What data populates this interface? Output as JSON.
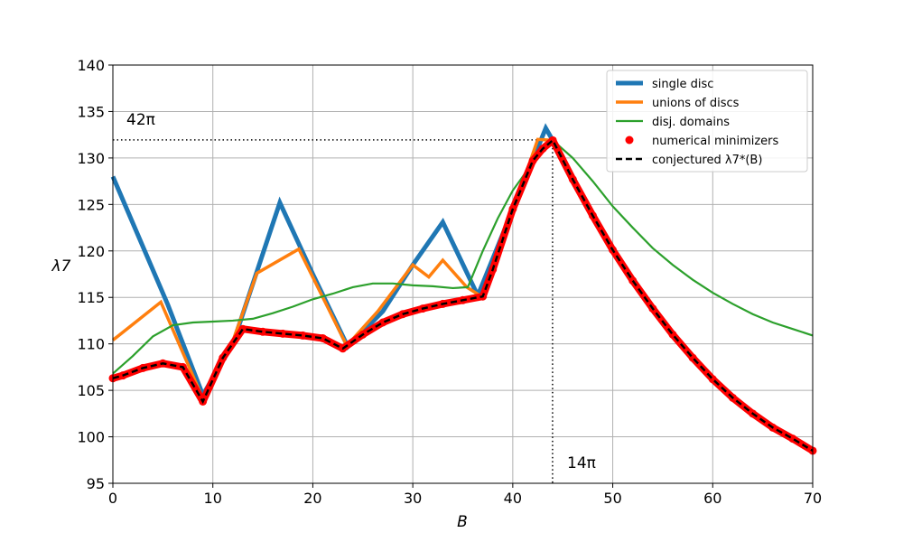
{
  "chart_data": {
    "type": "line",
    "xlabel": "B",
    "ylabel": "λ7",
    "xlim": [
      0,
      70
    ],
    "ylim": [
      95,
      140
    ],
    "xticks": [
      0,
      10,
      20,
      30,
      40,
      50,
      60,
      70
    ],
    "yticks": [
      95,
      100,
      105,
      110,
      115,
      120,
      125,
      130,
      135,
      140
    ],
    "grid": true,
    "legend_position": "top-right",
    "annotations": {
      "hline": {
        "label": "42π",
        "y": 131.95,
        "x_end": 44
      },
      "vline": {
        "label": "14π",
        "x": 43.98,
        "y_end": 131.95
      }
    },
    "series": [
      {
        "name": "single disc",
        "color": "#1f77b4",
        "style": "thick",
        "x": [
          0,
          5.5,
          9,
          12,
          16.7,
          20,
          23.5,
          27,
          30,
          33,
          36.5,
          43.3,
          44,
          46,
          48,
          50,
          52,
          54,
          56,
          58,
          60,
          62,
          64,
          66,
          68,
          70
        ],
        "y": [
          128,
          114.2,
          104.5,
          110,
          125.2,
          117.5,
          109.7,
          113.5,
          118.5,
          123.1,
          115.2,
          133.2,
          131.9,
          127.7,
          123.8,
          120.1,
          116.8,
          113.8,
          111,
          108.5,
          106.2,
          104.2,
          102.5,
          101,
          99.8,
          98.5
        ]
      },
      {
        "name": "unions of discs",
        "color": "#ff7f0e",
        "style": "medium",
        "x": [
          0,
          4.8,
          9,
          11.9,
          14.4,
          18.6,
          23.4,
          26.5,
          30,
          31.6,
          33,
          35.4,
          37,
          42.5,
          44,
          46,
          48,
          50,
          52,
          54,
          56,
          58,
          60,
          62,
          64,
          66,
          68,
          70
        ],
        "y": [
          110.4,
          114.5,
          104.1,
          110,
          117.6,
          120.2,
          109.8,
          113.5,
          118.5,
          117.2,
          119,
          116.1,
          115,
          132,
          131.9,
          127.7,
          123.8,
          120.1,
          116.8,
          113.8,
          111,
          108.5,
          106.2,
          104.2,
          102.5,
          101,
          99.8,
          98.5
        ]
      },
      {
        "name": "disj. domains",
        "color": "#2ca02c",
        "style": "thin",
        "x": [
          0,
          2,
          4,
          6,
          8,
          10,
          12,
          14,
          16,
          18,
          20,
          22,
          24,
          26,
          28,
          30,
          32,
          34,
          35.5,
          37,
          38.5,
          40,
          42,
          44,
          46,
          48,
          50,
          52,
          54,
          56,
          58,
          60,
          62,
          64,
          66,
          68,
          70
        ],
        "y": [
          106.8,
          108.7,
          110.8,
          112,
          112.3,
          112.4,
          112.5,
          112.7,
          113.3,
          114,
          114.8,
          115.4,
          116.1,
          116.5,
          116.5,
          116.3,
          116.2,
          116,
          116.1,
          120,
          123.5,
          126.5,
          129.5,
          131.9,
          130,
          127.5,
          124.8,
          122.5,
          120.3,
          118.5,
          116.9,
          115.5,
          114.3,
          113.2,
          112.3,
          111.6,
          110.9
        ]
      },
      {
        "name": "numerical minimizers",
        "color": "#ff0000",
        "style": "markers",
        "x": [
          0,
          1,
          3,
          5,
          7,
          9,
          11,
          13,
          15,
          17,
          19,
          21,
          23,
          25,
          27,
          29,
          31,
          33,
          35,
          37,
          38,
          40,
          42,
          43,
          44,
          46,
          48,
          50,
          52,
          54,
          56,
          58,
          60,
          62,
          64,
          66,
          68,
          70
        ],
        "y": [
          106.3,
          106.6,
          107.4,
          107.9,
          107.5,
          103.8,
          108.5,
          111.6,
          111.3,
          111.1,
          110.9,
          110.6,
          109.5,
          111,
          112.3,
          113.2,
          113.8,
          114.3,
          114.7,
          115.1,
          118,
          124.5,
          129.7,
          131,
          131.9,
          127.7,
          123.8,
          120.1,
          116.8,
          113.8,
          111,
          108.5,
          106.2,
          104.2,
          102.5,
          101,
          99.8,
          98.5
        ]
      },
      {
        "name": "conjectured λ7*(B)",
        "color": "#000000",
        "style": "dashed",
        "x": [
          0,
          1,
          3,
          5,
          7,
          9,
          11,
          13,
          15,
          17,
          19,
          21,
          23,
          25,
          27,
          29,
          31,
          33,
          35,
          37,
          38,
          40,
          42,
          43,
          44,
          46,
          48,
          50,
          52,
          54,
          56,
          58,
          60,
          62,
          64,
          66,
          68,
          70
        ],
        "y": [
          106.3,
          106.6,
          107.4,
          107.9,
          107.5,
          103.8,
          108.5,
          111.6,
          111.3,
          111.1,
          110.9,
          110.6,
          109.5,
          111,
          112.3,
          113.2,
          113.8,
          114.3,
          114.7,
          115.1,
          118,
          124.5,
          129.7,
          131,
          131.9,
          127.7,
          123.8,
          120.1,
          116.8,
          113.8,
          111,
          108.5,
          106.2,
          104.2,
          102.5,
          101,
          99.8,
          98.5
        ]
      }
    ]
  }
}
